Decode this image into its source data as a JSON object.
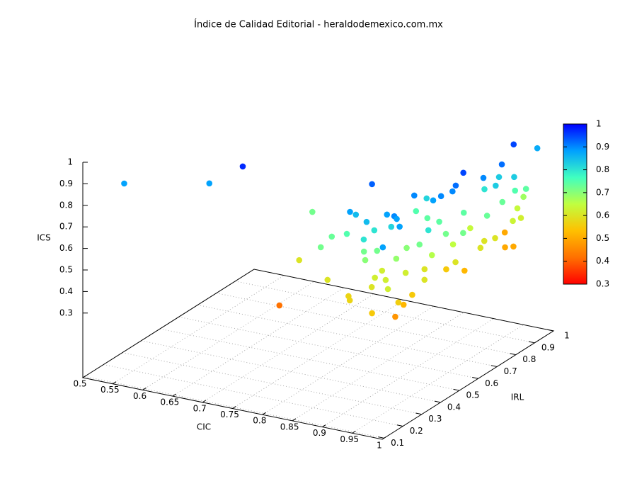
{
  "chart_data": {
    "type": "scatter3d",
    "title": "Índice de Calidad Editorial - heraldodemexico.com.mx",
    "xlabel": "CIC",
    "ylabel": "IRL",
    "zlabel": "ICS",
    "xlim": [
      0.5,
      1
    ],
    "xticks": [
      0.5,
      0.55,
      0.6,
      0.65,
      0.7,
      0.75,
      0.8,
      0.85,
      0.9,
      0.95,
      1
    ],
    "ylim": [
      0.09,
      1
    ],
    "yticks": [
      0.1,
      0.2,
      0.3,
      0.4,
      0.5,
      0.6,
      0.7,
      0.8,
      0.9,
      1
    ],
    "zlim": [
      0,
      1
    ],
    "zticks": [
      0.3,
      0.4,
      0.5,
      0.6,
      0.7,
      0.8,
      0.9,
      1
    ],
    "clim": [
      0.3,
      1
    ],
    "cticks": [
      0.3,
      0.4,
      0.5,
      0.6,
      0.7,
      0.8,
      0.9,
      1
    ],
    "palette": [
      "#ff0000",
      "#ff7000",
      "#ffc000",
      "#c0ff40",
      "#40ffc0",
      "#00a0ff",
      "#0000ff"
    ],
    "grid": true,
    "series": [
      {
        "x": [
          0.543,
          0.65,
          0.697,
          0.878,
          0.986,
          0.989,
          0.784,
          0.974,
          0.972,
          0.796,
          0.768,
          0.849,
          0.846,
          0.871,
          0.917,
          0.927,
          0.884,
          0.868,
          0.884,
          0.912,
          0.917,
          0.922,
          0.912,
          0.922,
          0.927,
          0.996,
          0.936,
          0.957,
          0.957,
          0.94,
          0.976,
          0.941,
          0.928,
          0.966,
          0.976,
          0.981,
          0.982,
          0.979,
          0.993,
          0.998,
          1,
          0.981,
          0.994,
          0.974,
          1,
          0.994,
          0.992,
          0.987,
          0.985,
          1,
          1,
          0.957,
          0.987,
          0.996,
          0.999,
          0.991,
          1,
          0.991,
          0.997,
          0.978,
          0.972,
          0.986,
          0.982,
          0.988,
          0.974,
          0.935,
          0.93,
          0.954,
          0.95,
          0.968,
          0.985,
          0.98,
          1,
          0.969,
          1,
          0.956,
          0.91,
          0.934,
          0.964,
          0.993,
          0.953,
          0.941,
          0.979,
          0.98,
          0.965
        ],
        "y": [
          0.173,
          0.285,
          0.313,
          0.424,
          0.833,
          0.949,
          0.231,
          0.242,
          0.125,
          0.298,
          0.457,
          0.244,
          0.312,
          0.21,
          0.175,
          0.15,
          0.288,
          0.322,
          0.319,
          0.287,
          0.312,
          0.24,
          0.273,
          0.248,
          0.295,
          0.106,
          0.319,
          0.291,
          0.304,
          0.329,
          0.259,
          0.448,
          0.555,
          0.469,
          0.479,
          0.524,
          0.538,
          0.588,
          0.65,
          0.732,
          0.791,
          0.771,
          0.712,
          0.716,
          0.854,
          0.815,
          0.754,
          0.882,
          0.856,
          0.827,
          0.784,
          0.878,
          0.784,
          0.8,
          0.693,
          0.661,
          0.612,
          0.556,
          0.489,
          0.5,
          0.404,
          0.294,
          0.261,
          0.214,
          0.203,
          0.258,
          0.312,
          0.311,
          0.379,
          0.39,
          0.383,
          0.492,
          0.52,
          0.622,
          0.647,
          0.533,
          0.556,
          0.54,
          0.329,
          0.337,
          0.258,
          0.222,
          0.421,
          0.53,
          0.669
        ],
        "z": [
          0.88,
          0.88,
          0.97,
          0.93,
          0.95,
          0.87,
          0.42,
          0.47,
          0.55,
          0.6,
          0.72,
          0.72,
          0.73,
          0.6,
          0.57,
          0.57,
          0.88,
          0.75,
          0.85,
          0.85,
          0.8,
          0.8,
          0.72,
          0.7,
          0.72,
          0.88,
          0.88,
          0.9,
          0.88,
          0.82,
          0.88,
          0.9,
          0.82,
          0.88,
          0.9,
          0.9,
          0.92,
          0.95,
          0.9,
          0.92,
          0.83,
          0.83,
          0.83,
          0.8,
          0.74,
          0.75,
          0.73,
          0.68,
          0.64,
          0.62,
          0.63,
          0.5,
          0.5,
          0.5,
          0.6,
          0.6,
          0.6,
          0.52,
          0.6,
          0.55,
          0.6,
          0.55,
          0.52,
          0.56,
          0.62,
          0.62,
          0.62,
          0.69,
          0.7,
          0.72,
          0.8,
          0.72,
          0.72,
          0.74,
          0.73,
          0.74,
          0.75,
          0.74,
          0.62,
          0.6,
          0.62,
          0.6,
          0.66,
          0.65,
          0.64
        ]
      }
    ]
  }
}
